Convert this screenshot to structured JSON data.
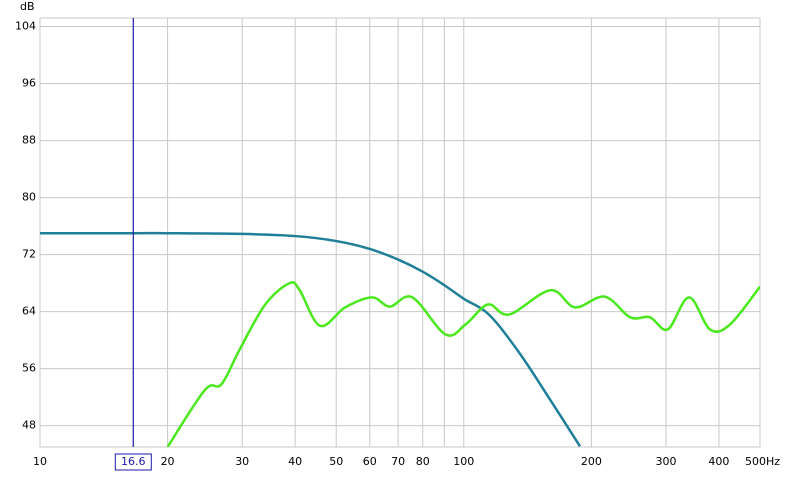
{
  "chart_data": {
    "type": "line",
    "y_label": "dB",
    "xscale": "log",
    "xlim": [
      10,
      500
    ],
    "ylim": [
      45,
      105.2
    ],
    "xticks": [
      10,
      20,
      30,
      40,
      50,
      60,
      70,
      80,
      100,
      200,
      300,
      400,
      {
        "value": 500,
        "label": "500Hz"
      }
    ],
    "x_minor_gridlines": [
      90
    ],
    "yticks": [
      48,
      56,
      64,
      72,
      80,
      88,
      96,
      104
    ],
    "grid": true,
    "cursor": {
      "value": 16.6,
      "color": "#1a1aa8"
    },
    "series": [
      {
        "color": "#1f7f98",
        "x": [
          10,
          16.6,
          20,
          30,
          40,
          50,
          60,
          70,
          80,
          90,
          100,
          115,
          136,
          160,
          188
        ],
        "values": [
          75.0,
          75.0,
          75.0,
          74.9,
          74.6,
          73.9,
          72.8,
          71.3,
          69.6,
          67.7,
          65.8,
          63.5,
          58.0,
          51.6,
          45.1
        ]
      },
      {
        "color": "#4ae81c",
        "x": [
          20,
          24.5,
          26.8,
          29.6,
          34,
          38.8,
          41,
          45.8,
          52.5,
          60.7,
          66.9,
          75.6,
          90.5,
          101,
          114,
          128,
          160,
          183,
          215,
          247,
          275,
          303,
          340,
          381,
          425,
          500
        ],
        "values": [
          45.0,
          53.0,
          53.8,
          58.7,
          65.0,
          68.0,
          67.0,
          62.0,
          64.6,
          66.0,
          64.7,
          66.0,
          60.8,
          62.2,
          65.0,
          63.6,
          67.0,
          64.6,
          66.1,
          63.2,
          63.2,
          61.5,
          66.0,
          61.5,
          62.2,
          67.5
        ]
      }
    ]
  }
}
